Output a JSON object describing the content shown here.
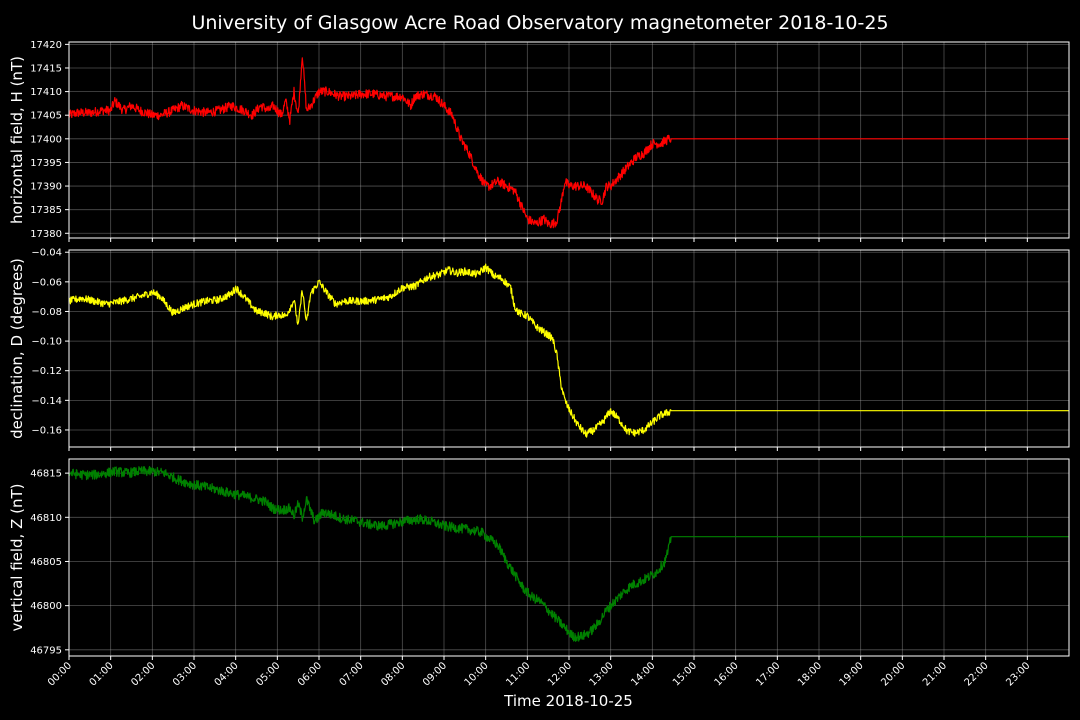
{
  "chart_data": {
    "type": "line",
    "title": "University of Glasgow Acre Road Observatory magnetometer 2018-10-25",
    "xlabel": "Time 2018-10-25",
    "x_ticks": [
      "00:00",
      "01:00",
      "02:00",
      "03:00",
      "04:00",
      "05:00",
      "06:00",
      "07:00",
      "08:00",
      "09:00",
      "10:00",
      "11:00",
      "12:00",
      "13:00",
      "14:00",
      "15:00",
      "16:00",
      "17:00",
      "18:00",
      "19:00",
      "20:00",
      "21:00",
      "22:00",
      "23:00"
    ],
    "xlim": [
      0,
      24
    ],
    "grid": true,
    "panels": [
      {
        "ylabel": "horizontal field, H (nT)",
        "color": "#ff0000",
        "ylim": [
          17379,
          17420.5
        ],
        "yticks": [
          17380,
          17385,
          17390,
          17395,
          17400,
          17405,
          17410,
          17415,
          17420
        ],
        "tick_labels": [
          "17380",
          "17385",
          "17390",
          "17395",
          "17400",
          "17405",
          "17410",
          "17415",
          "17420"
        ],
        "noise": 1.0,
        "x": [
          0,
          0.2,
          0.5,
          0.8,
          1.0,
          1.1,
          1.3,
          1.5,
          1.7,
          2.0,
          2.2,
          2.5,
          2.7,
          3.0,
          3.3,
          3.6,
          3.9,
          4.2,
          4.4,
          4.6,
          4.8,
          4.9,
          5.1,
          5.2,
          5.3,
          5.4,
          5.5,
          5.6,
          5.7,
          5.8,
          6.0,
          6.2,
          6.5,
          6.8,
          7.0,
          7.3,
          7.6,
          7.8,
          8.0,
          8.1,
          8.2,
          8.3,
          8.5,
          8.8,
          9.0,
          9.2,
          9.4,
          9.6,
          9.8,
          10.0,
          10.1,
          10.3,
          10.5,
          10.7,
          10.9,
          11.0,
          11.2,
          11.4,
          11.5,
          11.6,
          11.7,
          11.8,
          11.9,
          12.0,
          12.2,
          12.4,
          12.5,
          12.6,
          12.7,
          12.8,
          12.9,
          13.0,
          13.2,
          13.4,
          13.6,
          13.8,
          14.0,
          14.2,
          14.4,
          14.45,
          15,
          16,
          17,
          18,
          19,
          20,
          21,
          22,
          23,
          24
        ],
        "y": [
          17405,
          17405.5,
          17405.5,
          17406,
          17406,
          17408,
          17406,
          17407,
          17406,
          17405,
          17405,
          17406,
          17407,
          17406,
          17405.5,
          17406,
          17407,
          17406,
          17405,
          17407,
          17406,
          17407,
          17405,
          17408,
          17404,
          17410,
          17405,
          17418,
          17406,
          17407,
          17410,
          17410,
          17409,
          17409,
          17409.5,
          17409.5,
          17409,
          17409,
          17409,
          17408,
          17407,
          17409,
          17409.5,
          17409,
          17407,
          17405,
          17400,
          17397,
          17393,
          17390,
          17390,
          17391,
          17390,
          17389,
          17385,
          17383,
          17382,
          17383,
          17382,
          17382,
          17382.5,
          17386,
          17391,
          17390,
          17390,
          17390,
          17389,
          17388,
          17387,
          17387,
          17390,
          17390,
          17392,
          17394,
          17396,
          17397,
          17399,
          17399,
          17400,
          17400,
          17400,
          17400,
          17400,
          17400,
          17400,
          17400,
          17400,
          17400,
          17400,
          17400
        ]
      },
      {
        "ylabel": "declination, D (degrees)",
        "color": "#ffff00",
        "ylim": [
          -0.1715,
          -0.0385
        ],
        "yticks": [
          -0.16,
          -0.14,
          -0.12,
          -0.1,
          -0.08,
          -0.06,
          -0.04
        ],
        "tick_labels": [
          "−0.16",
          "−0.14",
          "−0.12",
          "−0.10",
          "−0.08",
          "−0.06",
          "−0.04"
        ],
        "noise": 0.0025,
        "x": [
          0,
          0.3,
          0.6,
          0.9,
          1.1,
          1.4,
          1.7,
          2.0,
          2.2,
          2.3,
          2.5,
          2.8,
          3.0,
          3.3,
          3.6,
          3.9,
          4.0,
          4.2,
          4.5,
          4.7,
          4.9,
          5.0,
          5.2,
          5.3,
          5.4,
          5.5,
          5.6,
          5.7,
          5.8,
          5.9,
          6.0,
          6.2,
          6.4,
          6.6,
          6.8,
          7.1,
          7.4,
          7.7,
          8.0,
          8.3,
          8.6,
          8.9,
          9.1,
          9.3,
          9.5,
          9.8,
          10.0,
          10.2,
          10.4,
          10.6,
          10.7,
          10.8,
          11.0,
          11.2,
          11.4,
          11.6,
          11.7,
          11.8,
          11.9,
          12.0,
          12.2,
          12.4,
          12.6,
          12.8,
          13.0,
          13.2,
          13.4,
          13.6,
          13.8,
          14.0,
          14.2,
          14.4,
          14.45,
          15,
          16,
          17,
          18,
          19,
          20,
          21,
          22,
          23,
          24
        ],
        "y": [
          -0.073,
          -0.071,
          -0.073,
          -0.075,
          -0.074,
          -0.072,
          -0.07,
          -0.067,
          -0.07,
          -0.074,
          -0.081,
          -0.077,
          -0.075,
          -0.073,
          -0.072,
          -0.068,
          -0.064,
          -0.07,
          -0.08,
          -0.081,
          -0.084,
          -0.082,
          -0.083,
          -0.078,
          -0.072,
          -0.09,
          -0.065,
          -0.088,
          -0.068,
          -0.064,
          -0.06,
          -0.068,
          -0.075,
          -0.073,
          -0.073,
          -0.073,
          -0.072,
          -0.07,
          -0.064,
          -0.063,
          -0.057,
          -0.055,
          -0.052,
          -0.054,
          -0.053,
          -0.055,
          -0.05,
          -0.056,
          -0.058,
          -0.064,
          -0.077,
          -0.081,
          -0.083,
          -0.09,
          -0.094,
          -0.098,
          -0.108,
          -0.128,
          -0.14,
          -0.146,
          -0.156,
          -0.163,
          -0.16,
          -0.155,
          -0.147,
          -0.153,
          -0.161,
          -0.162,
          -0.16,
          -0.155,
          -0.15,
          -0.148,
          -0.147,
          -0.147,
          -0.147,
          -0.147,
          -0.147,
          -0.147,
          -0.147,
          -0.147,
          -0.147,
          -0.147,
          -0.147
        ]
      },
      {
        "ylabel": "vertical field, Z (nT)",
        "color": "#008000",
        "ylim": [
          46794.3,
          46816.6
        ],
        "yticks": [
          46795,
          46800,
          46805,
          46810,
          46815
        ],
        "tick_labels": [
          "46795",
          "46800",
          "46805",
          "46810",
          "46815"
        ],
        "noise": 0.55,
        "x": [
          0,
          0.3,
          0.6,
          0.9,
          1.1,
          1.4,
          1.7,
          2.0,
          2.3,
          2.6,
          2.9,
          3.2,
          3.5,
          3.8,
          4.1,
          4.4,
          4.7,
          4.9,
          5.1,
          5.3,
          5.4,
          5.5,
          5.6,
          5.7,
          5.9,
          6.1,
          6.3,
          6.6,
          6.9,
          7.2,
          7.5,
          7.8,
          8.1,
          8.4,
          8.7,
          9.0,
          9.3,
          9.6,
          9.9,
          10.1,
          10.3,
          10.5,
          10.7,
          10.9,
          11.1,
          11.3,
          11.5,
          11.7,
          11.9,
          12.1,
          12.3,
          12.5,
          12.7,
          12.9,
          13.1,
          13.3,
          13.5,
          13.7,
          13.9,
          14.1,
          14.3,
          14.4,
          14.45,
          15,
          16,
          17,
          18,
          19,
          20,
          21,
          22,
          23,
          24
        ],
        "y": [
          46815,
          46814.8,
          46814.8,
          46815,
          46815.2,
          46815,
          46815.2,
          46815.2,
          46815,
          46814.3,
          46813.8,
          46813.5,
          46813.2,
          46812.8,
          46812.5,
          46812.2,
          46811.8,
          46811,
          46810.8,
          46811,
          46810.2,
          46811.5,
          46810,
          46812,
          46809.5,
          46810.6,
          46810.3,
          46809.8,
          46809.6,
          46809.2,
          46809,
          46809.3,
          46809.6,
          46809.8,
          46809.5,
          46809,
          46808.8,
          46808.6,
          46808.3,
          46807.5,
          46806.8,
          46805,
          46803.5,
          46802,
          46801,
          46800.5,
          46799.5,
          46798.5,
          46797.5,
          46796.5,
          46796.5,
          46797,
          46798,
          46799.5,
          46800.5,
          46801.5,
          46802.3,
          46802.7,
          46803.2,
          46803.8,
          46805,
          46806.5,
          46807.8,
          46807.8,
          46807.8,
          46807.8,
          46807.8,
          46807.8,
          46807.8,
          46807.8,
          46807.8,
          46807.8,
          46807.8
        ]
      }
    ]
  }
}
